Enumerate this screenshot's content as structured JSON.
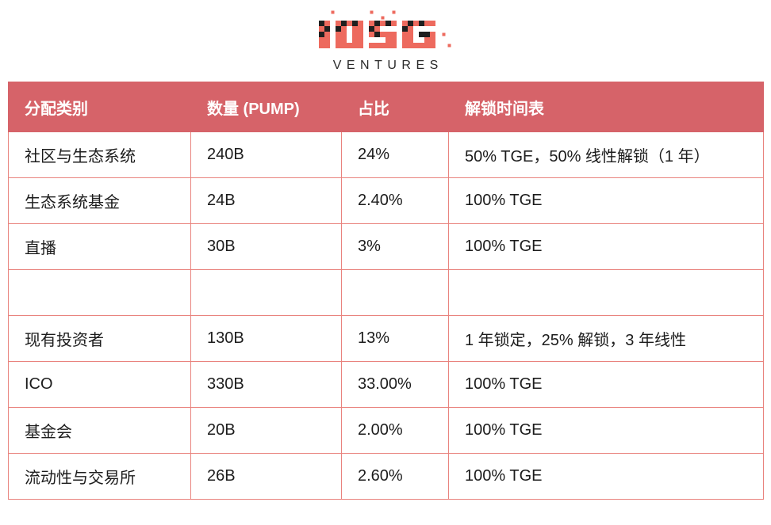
{
  "logo": {
    "text": "IOSG",
    "subtext": "VENTURES",
    "brand_red": "#ed6a5e",
    "brand_black": "#1f1f1f"
  },
  "colors": {
    "header_bg": "#d66369",
    "header_text": "#ffffff",
    "border": "#e9837e",
    "body_text": "#1c1c1c",
    "background": "#ffffff"
  },
  "table": {
    "columns": [
      "分配类别",
      "数量 (PUMP)",
      "占比",
      "解锁时间表"
    ],
    "rows": [
      [
        "社区与生态系统",
        "240B",
        "24%",
        "50% TGE，50% 线性解锁（1 年）"
      ],
      [
        "生态系统基金",
        "24B",
        "2.40%",
        "100% TGE"
      ],
      [
        "直播",
        "30B",
        "3%",
        "100% TGE"
      ],
      [
        "",
        "",
        "",
        ""
      ],
      [
        "现有投资者",
        "130B",
        "13%",
        "1 年锁定，25% 解锁，3 年线性"
      ],
      [
        "ICO",
        "330B",
        "33.00%",
        "100% TGE"
      ],
      [
        "基金会",
        "20B",
        "2.00%",
        "100% TGE"
      ],
      [
        "流动性与交易所",
        "26B",
        "2.60%",
        "100% TGE"
      ]
    ]
  }
}
